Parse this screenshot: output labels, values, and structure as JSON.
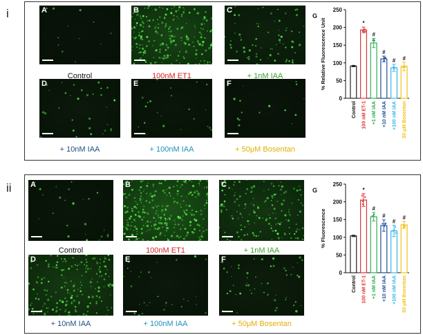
{
  "sections": [
    {
      "roman": "i",
      "images": [
        {
          "letter": "A",
          "caption": "Control",
          "caption_color": "#111111",
          "density": 0.02
        },
        {
          "letter": "B",
          "caption": "100nM ET1",
          "caption_color": "#d42020",
          "density": 0.7
        },
        {
          "letter": "C",
          "caption": "+ 1nM IAA",
          "caption_color": "#3aa22e",
          "density": 0.22
        },
        {
          "letter": "D",
          "caption": "+ 10nM IAA",
          "caption_color": "#1f4e79",
          "density": 0.08
        },
        {
          "letter": "E",
          "caption": "+ 100nM IAA",
          "caption_color": "#1f8fbf",
          "density": 0.05
        },
        {
          "letter": "F",
          "caption": "+ 50μM Bosentan",
          "caption_color": "#e0b000",
          "density": 0.03
        }
      ],
      "chart_data": {
        "type": "bar",
        "panel_letter": "G",
        "ylabel": "% Relative Fluorescence Unit",
        "ylim": [
          0,
          250
        ],
        "yticks": [
          0,
          50,
          100,
          150,
          200,
          250
        ],
        "categories": [
          "Control",
          "100 nM ET-1",
          "+1 nM IAA",
          "+10 nM IAA",
          "+100 nM IAA",
          "50 μM Bosentan"
        ],
        "values": [
          91,
          193,
          156,
          111,
          86,
          90
        ],
        "errors": [
          2,
          8,
          13,
          8,
          10,
          12
        ],
        "colors": [
          "#222222",
          "#e03030",
          "#2eab55",
          "#1f4e9b",
          "#35b6e8",
          "#f2c218"
        ],
        "significance": [
          "",
          "*",
          "#",
          "#",
          "#",
          "#"
        ]
      }
    },
    {
      "roman": "ii",
      "images": [
        {
          "letter": "A",
          "caption": "Control",
          "caption_color": "#111111",
          "density": 0.06
        },
        {
          "letter": "B",
          "caption": "100nM ET1",
          "caption_color": "#d42020",
          "density": 0.9
        },
        {
          "letter": "C",
          "caption": "+ 1nM IAA",
          "caption_color": "#3aa22e",
          "density": 0.5
        },
        {
          "letter": "D",
          "caption": "+ 10nM IAA",
          "caption_color": "#1f4e79",
          "density": 0.55
        },
        {
          "letter": "E",
          "caption": "+ 100nM IAA",
          "caption_color": "#1f8fbf",
          "density": 0.08
        },
        {
          "letter": "F",
          "caption": "+ 50μM Bosentan",
          "caption_color": "#e0b000",
          "density": 0.15
        }
      ],
      "chart_data": {
        "type": "bar",
        "panel_letter": "G",
        "ylabel": "% Fluorescence",
        "ylim": [
          0,
          250
        ],
        "yticks": [
          0,
          50,
          100,
          150,
          200,
          250
        ],
        "categories": [
          "Control",
          "100 nM ET-1",
          "+1 nM IAA",
          "+10 nM IAA",
          "+100 nM IAA",
          "50 μM Bosentan"
        ],
        "values": [
          104,
          205,
          158,
          133,
          118,
          135
        ],
        "errors": [
          2,
          18,
          12,
          16,
          16,
          10
        ],
        "colors": [
          "#222222",
          "#e03030",
          "#2eab55",
          "#1f4e9b",
          "#35b6e8",
          "#f2c218"
        ],
        "significance": [
          "",
          "*",
          "#",
          "#",
          "#",
          "#"
        ]
      }
    }
  ]
}
